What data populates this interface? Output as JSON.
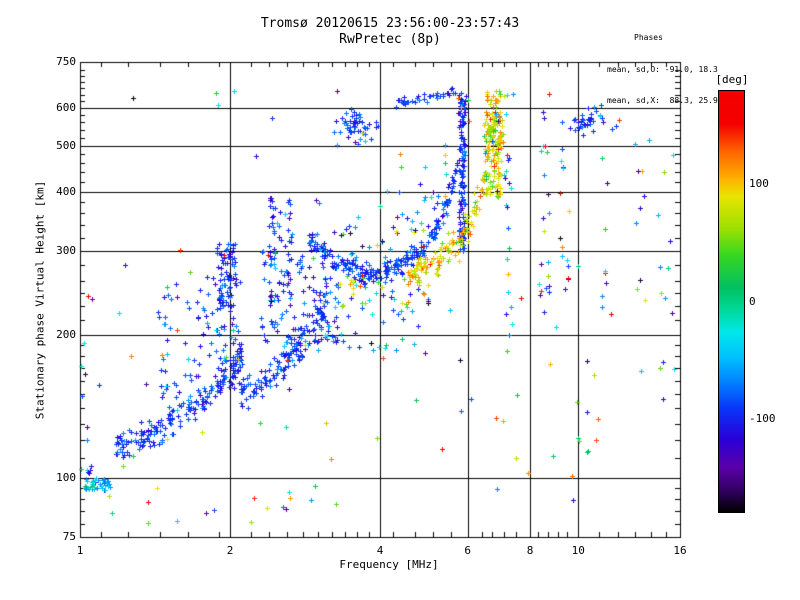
{
  "page": {
    "background": "#ffffff",
    "text_color": "#000000"
  },
  "header": {
    "title": "Tromsø 20120615 23:56:00-23:57:43",
    "subtitle": "RwPretec (8p)",
    "stats_title": "Phases",
    "stats_line_o": "mean, sd,O: -91.0, 18.3",
    "stats_line_x": "mean, sd,X:  88.3, 25.9"
  },
  "chart_data": {
    "type": "scatter",
    "title": "Tromsø 20120615 23:56:00-23:57:43",
    "subtitle": "RwPretec (8p)",
    "xlabel": "Frequency [MHz]",
    "ylabel": "Stationary phase Virtual Height [km]",
    "xscale": "log",
    "yscale": "log",
    "xlim": [
      1,
      16
    ],
    "ylim": [
      75,
      750
    ],
    "grid": true,
    "marker": "plus",
    "marker_size_px": 5,
    "x_major_ticks": [
      1,
      2,
      4,
      6,
      8,
      10,
      16
    ],
    "x_minor_ticks": [
      1.1,
      1.25,
      1.45,
      1.65,
      1.9,
      2.2,
      2.4,
      2.6,
      2.8,
      3.0,
      3.2,
      3.4,
      3.6,
      3.8,
      4.25,
      4.7,
      5.1,
      5.55,
      6.4,
      6.7,
      7.1,
      7.5,
      8.3,
      8.7,
      9.1,
      9.5,
      11,
      12,
      13,
      14,
      15
    ],
    "y_major_ticks": [
      75,
      100,
      200,
      300,
      400,
      500,
      600,
      750
    ],
    "y_minor_ticks": [
      80,
      85,
      90,
      95,
      110,
      120,
      130,
      140,
      150,
      160,
      170,
      180,
      190,
      215,
      230,
      245,
      260,
      280,
      320,
      340,
      360,
      380,
      420,
      440,
      460,
      480,
      520,
      540,
      560,
      580,
      620,
      640,
      660,
      680,
      700,
      720
    ],
    "x_gridlines": [
      2,
      4,
      6,
      8,
      10
    ],
    "y_gridlines": [
      100,
      200,
      300,
      400,
      500,
      600
    ],
    "phase_stats": {
      "O": {
        "mean": -91.0,
        "sd": 18.3
      },
      "X": {
        "mean": 88.3,
        "sd": 25.9
      }
    },
    "colorbar": {
      "label": "[deg]",
      "range": [
        180,
        -180
      ],
      "ticks": [
        100,
        0,
        -100
      ],
      "stops": [
        [
          180,
          "#f20000"
        ],
        [
          152,
          "#f50000"
        ],
        [
          128,
          "#ff6400"
        ],
        [
          104,
          "#ffb400"
        ],
        [
          90,
          "#e8e400"
        ],
        [
          62,
          "#9ce000"
        ],
        [
          40,
          "#38d820"
        ],
        [
          12,
          "#00c060"
        ],
        [
          -6,
          "#00d895"
        ],
        [
          -26,
          "#00e8e8"
        ],
        [
          -48,
          "#00c0ff"
        ],
        [
          -68,
          "#0084ff"
        ],
        [
          -92,
          "#0934f8"
        ],
        [
          -118,
          "#2a00d8"
        ],
        [
          -142,
          "#5a00a8"
        ],
        [
          -162,
          "#300060"
        ],
        [
          -180,
          "#000000"
        ]
      ]
    },
    "seed": 20120615,
    "clusters": [
      {
        "id": "e-blob",
        "type": "box",
        "f": [
          1.02,
          1.15
        ],
        "h": [
          94,
          100
        ],
        "n": 40,
        "ph": [
          -55,
          28
        ]
      },
      {
        "id": "left-col",
        "type": "box",
        "f": [
          1.0,
          1.05
        ],
        "h": [
          100,
          130
        ],
        "n": 8,
        "ph": [
          -100,
          45
        ]
      },
      {
        "id": "left-strip",
        "type": "box",
        "f": [
          1.0,
          1.1
        ],
        "h": [
          140,
          300
        ],
        "n": 6,
        "ph": "randb"
      },
      {
        "id": "low-sparse",
        "type": "box",
        "f": [
          1.1,
          3.6
        ],
        "h": [
          76,
          96
        ],
        "n": 14,
        "ph": "rand"
      },
      {
        "id": "e-band",
        "type": "band",
        "f": [
          1.18,
          2.12
        ],
        "line": [
          [
            1.18,
            116
          ],
          [
            1.35,
            122
          ],
          [
            1.55,
            132
          ],
          [
            1.75,
            146
          ],
          [
            1.95,
            163
          ],
          [
            2.12,
            180
          ]
        ],
        "sig": 0.016,
        "n": 190,
        "ph": [
          -95,
          14
        ]
      },
      {
        "id": "e-cloud",
        "type": "box",
        "f": [
          1.42,
          2.1
        ],
        "h": [
          148,
          265
        ],
        "n": 105,
        "ph": [
          -88,
          22
        ]
      },
      {
        "id": "col-2mhz",
        "type": "box",
        "f": [
          1.88,
          2.06
        ],
        "h": [
          228,
          312
        ],
        "n": 65,
        "ph": [
          -95,
          15
        ]
      },
      {
        "id": "f1-band",
        "type": "band",
        "f": [
          2.1,
          3.15
        ],
        "line": [
          [
            2.1,
            150
          ],
          [
            2.3,
            158
          ],
          [
            2.5,
            170
          ],
          [
            2.7,
            186
          ],
          [
            2.9,
            206
          ],
          [
            3.15,
            232
          ]
        ],
        "sig": 0.02,
        "n": 140,
        "ph": [
          -93,
          17
        ]
      },
      {
        "id": "f1-cloud",
        "type": "box",
        "f": [
          2.3,
          3.3
        ],
        "h": [
          192,
          302
        ],
        "n": 110,
        "ph": [
          -90,
          24
        ]
      },
      {
        "id": "col-2p5",
        "type": "box",
        "f": [
          2.4,
          2.68
        ],
        "h": [
          240,
          392
        ],
        "n": 55,
        "ph": [
          -96,
          20
        ]
      },
      {
        "id": "under-valley",
        "type": "box",
        "f": [
          3.0,
          5.0
        ],
        "h": [
          180,
          258
        ],
        "n": 50,
        "ph": [
          -72,
          55
        ]
      },
      {
        "id": "valley",
        "type": "band",
        "f": [
          2.87,
          5.74
        ],
        "line": [
          [
            2.87,
            318
          ],
          [
            3.1,
            295
          ],
          [
            3.35,
            280
          ],
          [
            3.7,
            268
          ],
          [
            4.05,
            270
          ],
          [
            4.35,
            278
          ],
          [
            4.65,
            292
          ],
          [
            4.95,
            312
          ],
          [
            5.2,
            338
          ],
          [
            5.45,
            375
          ],
          [
            5.6,
            420
          ],
          [
            5.74,
            472
          ]
        ],
        "sig": 0.011,
        "n": 250,
        "ph": [
          -93,
          14
        ]
      },
      {
        "id": "valley-fuzz",
        "type": "band",
        "f": [
          2.9,
          5.5
        ],
        "line": [
          [
            2.9,
            360
          ],
          [
            3.3,
            318
          ],
          [
            3.8,
            305
          ],
          [
            4.3,
            315
          ],
          [
            4.8,
            350
          ],
          [
            5.2,
            395
          ],
          [
            5.5,
            450
          ]
        ],
        "sig": 0.045,
        "n": 60,
        "ph": "randb"
      },
      {
        "id": "o-col",
        "type": "box",
        "f": [
          5.76,
          5.92
        ],
        "h": [
          300,
          650
        ],
        "n": 125,
        "ph": [
          -95,
          17
        ]
      },
      {
        "id": "o-col-sprinkle",
        "type": "box",
        "f": [
          5.7,
          6.05
        ],
        "h": [
          555,
          655
        ],
        "n": 9,
        "ph": "rand"
      },
      {
        "id": "arc-2hop",
        "type": "band",
        "f": [
          4.3,
          5.72
        ],
        "line": [
          [
            4.3,
            612
          ],
          [
            4.8,
            632
          ],
          [
            5.3,
            645
          ],
          [
            5.72,
            652
          ]
        ],
        "sig": 0.006,
        "n": 38,
        "ph": [
          -95,
          14
        ]
      },
      {
        "id": "blob-2hop",
        "type": "blob",
        "c": [
          3.58,
          560
        ],
        "s": [
          0.02,
          0.012
        ],
        "n": 45,
        "ph": [
          -93,
          14
        ]
      },
      {
        "id": "blob-2hop-halo",
        "type": "box",
        "f": [
          3.25,
          4.0
        ],
        "h": [
          495,
          560
        ],
        "n": 10,
        "ph": [
          -90,
          30
        ]
      },
      {
        "id": "x-valley",
        "type": "box",
        "f": [
          3.3,
          4.9
        ],
        "h": [
          228,
          266
        ],
        "n": 24,
        "ph": [
          86,
          30
        ]
      },
      {
        "id": "x-trace",
        "type": "band",
        "f": [
          4.55,
          6.68
        ],
        "line": [
          [
            4.55,
            262
          ],
          [
            5.0,
            280
          ],
          [
            5.45,
            300
          ],
          [
            5.85,
            325
          ],
          [
            6.15,
            360
          ],
          [
            6.4,
            405
          ],
          [
            6.55,
            465
          ],
          [
            6.63,
            540
          ],
          [
            6.68,
            618
          ]
        ],
        "sig": 0.016,
        "n": 145,
        "ph": [
          88,
          26
        ]
      },
      {
        "id": "x-col",
        "type": "box",
        "f": [
          6.52,
          7.02
        ],
        "h": [
          390,
          655
        ],
        "n": 115,
        "ph": [
          88,
          26
        ]
      },
      {
        "id": "x-blob",
        "type": "box",
        "f": [
          6.46,
          7.08
        ],
        "h": [
          490,
          570
        ],
        "n": 40,
        "ph": [
          86,
          30
        ]
      },
      {
        "id": "x-col-sprinkle",
        "type": "box",
        "f": [
          6.5,
          7.05
        ],
        "h": [
          400,
          650
        ],
        "n": 12,
        "ph": "rand"
      },
      {
        "id": "col-7mhz",
        "type": "box",
        "f": [
          7.1,
          7.4
        ],
        "h": [
          200,
          655
        ],
        "n": 24,
        "ph": "randb"
      },
      {
        "id": "col-8p5mhz",
        "type": "box",
        "f": [
          8.35,
          8.75
        ],
        "h": [
          210,
          655
        ],
        "n": 20,
        "ph": "randb"
      },
      {
        "id": "col-9p5mhz",
        "type": "box",
        "f": [
          9.15,
          9.6
        ],
        "h": [
          210,
          645
        ],
        "n": 14,
        "ph": "randb"
      },
      {
        "id": "blue-10mhz",
        "type": "blob",
        "c": [
          10.35,
          562
        ],
        "s": [
          0.022,
          0.013
        ],
        "n": 38,
        "ph": [
          -95,
          15
        ]
      },
      {
        "id": "col-11mhz",
        "type": "box",
        "f": [
          10.9,
          11.4
        ],
        "h": [
          210,
          645
        ],
        "n": 11,
        "ph": "randb"
      },
      {
        "id": "col-13mhz",
        "type": "box",
        "f": [
          13.0,
          13.9
        ],
        "h": [
          210,
          645
        ],
        "n": 10,
        "ph": "randb"
      },
      {
        "id": "col-15mhz",
        "type": "box",
        "f": [
          14.3,
          15.6
        ],
        "h": [
          120,
          655
        ],
        "n": 13,
        "ph": "randb"
      },
      {
        "id": "low-right",
        "type": "box",
        "f": [
          4.0,
          11.5
        ],
        "h": [
          95,
          190
        ],
        "n": 18,
        "ph": "rand"
      },
      {
        "id": "sprinkle-left",
        "type": "box",
        "f": [
          1.2,
          3.2
        ],
        "h": [
          118,
          305
        ],
        "n": 26,
        "ph": "rand"
      },
      {
        "id": "gen-sparse",
        "type": "box",
        "f": [
          1.05,
          15.6
        ],
        "h": [
          85,
          700
        ],
        "n": 48,
        "ph": "rand"
      }
    ]
  }
}
